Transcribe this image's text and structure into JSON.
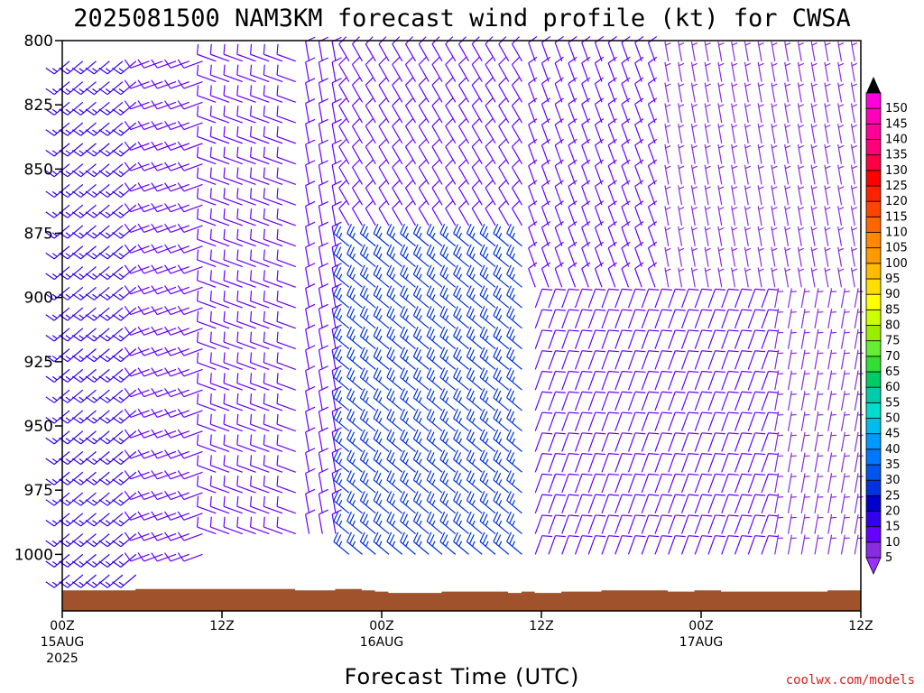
{
  "chart_data": {
    "type": "wind_barb_profile",
    "title": "2025081500 NAM3KM forecast wind profile (kt) for CWSA",
    "xlabel": "Forecast Time (UTC)",
    "credit": "coolwx.com/models",
    "y_axis": {
      "unit": "hPa",
      "range": [
        800,
        1022
      ],
      "inverted": true,
      "tick_labels": [
        "800",
        "825",
        "850",
        "875",
        "900",
        "925",
        "950",
        "975",
        "1000"
      ],
      "tick_values": [
        800,
        825,
        850,
        875,
        900,
        925,
        950,
        975,
        1000
      ]
    },
    "x_axis": {
      "range_hours": [
        0,
        60
      ],
      "ticks": [
        {
          "hour": 0,
          "lines": [
            "00Z",
            "15AUG",
            "2025"
          ]
        },
        {
          "hour": 12,
          "lines": [
            "12Z"
          ]
        },
        {
          "hour": 24,
          "lines": [
            "00Z",
            "16AUG"
          ]
        },
        {
          "hour": 36,
          "lines": [
            "12Z"
          ]
        },
        {
          "hour": 48,
          "lines": [
            "00Z",
            "17AUG"
          ]
        },
        {
          "hour": 60,
          "lines": [
            "12Z"
          ]
        }
      ]
    },
    "colorbar": {
      "labels": [
        "5",
        "10",
        "15",
        "20",
        "25",
        "30",
        "35",
        "40",
        "45",
        "50",
        "55",
        "60",
        "65",
        "70",
        "75",
        "80",
        "85",
        "90",
        "95",
        "100",
        "105",
        "110",
        "115",
        "120",
        "125",
        "130",
        "135",
        "140",
        "145",
        "150"
      ],
      "colors": [
        "#8a2be2",
        "#6600ff",
        "#3300ee",
        "#0000cc",
        "#0033dd",
        "#0055ee",
        "#0077ff",
        "#0099ff",
        "#00bbee",
        "#00ddcc",
        "#00ccaa",
        "#00cc66",
        "#33dd33",
        "#66ee33",
        "#99ee00",
        "#ccff00",
        "#ffff00",
        "#ffdd00",
        "#ffbb00",
        "#ff9900",
        "#ff8800",
        "#ff6600",
        "#ff4400",
        "#ff2200",
        "#ff0000",
        "#ff0044",
        "#ff0077",
        "#ff0099",
        "#ff00bb",
        "#ff00dd"
      ]
    },
    "surface_pressure_hpa": [
      1014,
      1014,
      1014,
      1014,
      1014,
      1014,
      1013.5,
      1013.5,
      1013.5,
      1013.5,
      1013.5,
      1013.5,
      1013.5,
      1013.5,
      1013.5,
      1013.5,
      1013.5,
      1013.5,
      1014,
      1014,
      1014,
      1013.5,
      1013.5,
      1014,
      1014.5,
      1015,
      1015,
      1015,
      1015,
      1014.5,
      1014.5,
      1014.5,
      1014.5,
      1014.5,
      1015,
      1014.5,
      1015,
      1015,
      1014.5,
      1014.5,
      1014.5,
      1014,
      1014,
      1014,
      1014,
      1014,
      1014.5,
      1014.5,
      1014,
      1014,
      1014.5,
      1014.5,
      1014.5,
      1014.5,
      1014.5,
      1014.5,
      1014.5,
      1014.5,
      1014,
      1014,
      1014
    ],
    "barb_levels_hpa": [
      808,
      816,
      824,
      832,
      840,
      848,
      856,
      864,
      872,
      880,
      888,
      896,
      904,
      912,
      920,
      928,
      936,
      944,
      952,
      960,
      968,
      976,
      984,
      992,
      1000,
      1008
    ],
    "wind_regimes": [
      {
        "hours": [
          0,
          5
        ],
        "levels_hpa": [
          800,
          1010
        ],
        "dir_deg": 230,
        "speed_kt": 15
      },
      {
        "hours": [
          6,
          10
        ],
        "levels_hpa": [
          800,
          1005
        ],
        "dir_deg": 250,
        "speed_kt": 10
      },
      {
        "hours": [
          11,
          17
        ],
        "levels_hpa": [
          800,
          1000
        ],
        "dir_deg": 290,
        "speed_kt": 10
      },
      {
        "hours": [
          18,
          20
        ],
        "levels_hpa": [
          800,
          1000
        ],
        "dir_deg": 350,
        "speed_kt": 10
      },
      {
        "hours": [
          21,
          34
        ],
        "levels_hpa": [
          800,
          880
        ],
        "dir_deg": 330,
        "speed_kt": 10
      },
      {
        "hours": [
          21,
          34
        ],
        "levels_hpa": [
          880,
          1005
        ],
        "dir_deg": 310,
        "speed_kt": 25
      },
      {
        "hours": [
          35,
          44
        ],
        "levels_hpa": [
          800,
          900
        ],
        "dir_deg": 340,
        "speed_kt": 10
      },
      {
        "hours": [
          35,
          52
        ],
        "levels_hpa": [
          900,
          1005
        ],
        "dir_deg": 20,
        "speed_kt": 10
      },
      {
        "hours": [
          45,
          60
        ],
        "levels_hpa": [
          800,
          900
        ],
        "dir_deg": 350,
        "speed_kt": 5
      },
      {
        "hours": [
          53,
          60
        ],
        "levels_hpa": [
          900,
          1005
        ],
        "dir_deg": 10,
        "speed_kt": 5
      }
    ]
  }
}
